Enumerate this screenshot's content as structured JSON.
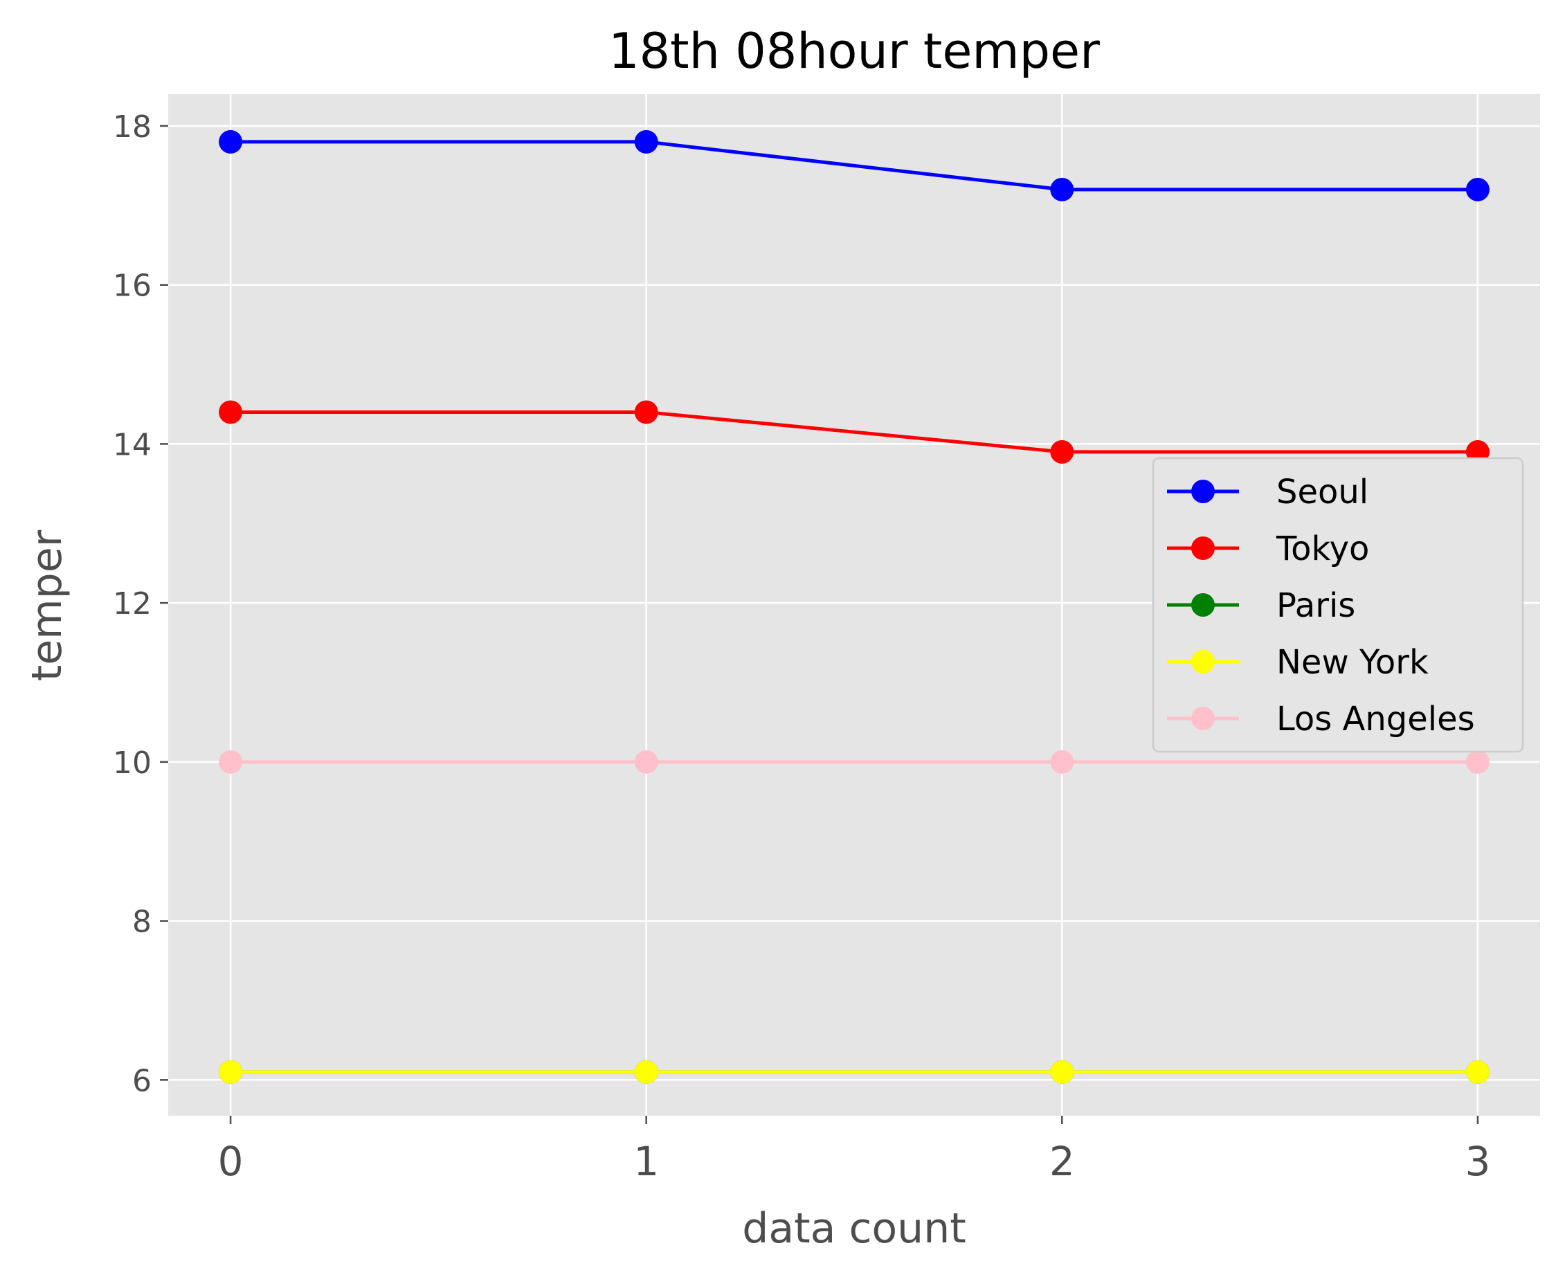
{
  "chart_data": {
    "type": "line",
    "title": "18th 08hour temper",
    "xlabel": "data count",
    "ylabel": "temper",
    "x": [
      0,
      1,
      2,
      3
    ],
    "xlim": [
      -0.15,
      3.15
    ],
    "ylim": [
      5.55,
      18.4
    ],
    "xticks": [
      0,
      1,
      2,
      3
    ],
    "yticks": [
      6,
      8,
      10,
      12,
      14,
      16,
      18
    ],
    "grid": true,
    "legend_position": "center-right",
    "background": "#e5e5e5",
    "series": [
      {
        "name": "Seoul",
        "color": "#0000ff",
        "values": [
          17.8,
          17.8,
          17.2,
          17.2
        ]
      },
      {
        "name": "Tokyo",
        "color": "#ff0000",
        "values": [
          14.4,
          14.4,
          13.9,
          13.9
        ]
      },
      {
        "name": "Paris",
        "color": "#008000",
        "values": [
          6.1,
          6.1,
          6.1,
          6.1
        ]
      },
      {
        "name": "New York",
        "color": "#ffff00",
        "values": [
          6.1,
          6.1,
          6.1,
          6.1
        ]
      },
      {
        "name": "Los Angeles",
        "color": "#ffc0cb",
        "values": [
          10.0,
          10.0,
          10.0,
          10.0
        ]
      }
    ]
  }
}
